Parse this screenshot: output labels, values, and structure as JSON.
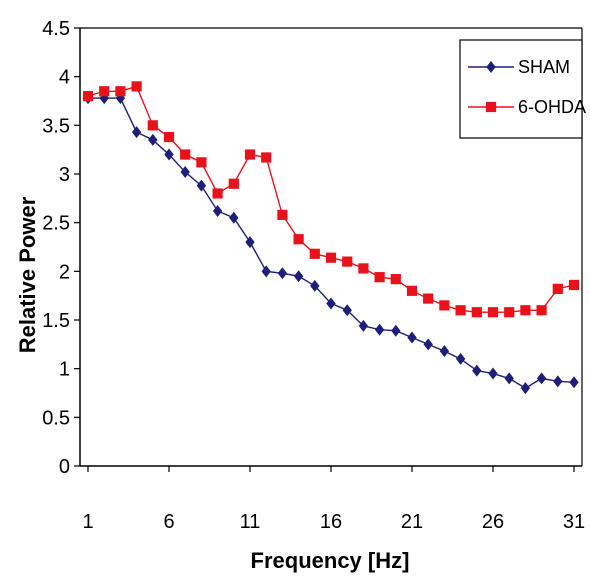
{
  "chart_data": {
    "type": "line",
    "title": "",
    "xlabel": "Frequency [Hz]",
    "ylabel": "Relative Power",
    "xlim": [
      1,
      31
    ],
    "ylim": [
      0,
      4.5
    ],
    "x_ticks": [
      1,
      6,
      11,
      16,
      21,
      26,
      31
    ],
    "y_ticks": [
      0,
      0.5,
      1,
      1.5,
      2,
      2.5,
      3,
      3.5,
      4,
      4.5
    ],
    "grid": false,
    "legend_position": "top-right",
    "x": [
      1,
      2,
      3,
      4,
      5,
      6,
      7,
      8,
      9,
      10,
      11,
      12,
      13,
      14,
      15,
      16,
      17,
      18,
      19,
      20,
      21,
      22,
      23,
      24,
      25,
      26,
      27,
      28,
      29,
      30,
      31
    ],
    "series": [
      {
        "name": "SHAM",
        "color": "#1f1f7a",
        "marker": "diamond",
        "values": [
          3.78,
          3.78,
          3.78,
          3.43,
          3.35,
          3.2,
          3.02,
          2.88,
          2.62,
          2.55,
          2.3,
          2.0,
          1.98,
          1.95,
          1.85,
          1.67,
          1.6,
          1.44,
          1.4,
          1.39,
          1.32,
          1.25,
          1.18,
          1.1,
          0.98,
          0.95,
          0.9,
          0.8,
          0.9,
          0.87,
          0.86
        ]
      },
      {
        "name": "6-OHDA",
        "color": "#e8121b",
        "marker": "square",
        "values": [
          3.8,
          3.85,
          3.85,
          3.9,
          3.5,
          3.38,
          3.2,
          3.12,
          2.8,
          2.9,
          3.2,
          3.17,
          2.58,
          2.33,
          2.18,
          2.14,
          2.1,
          2.03,
          1.94,
          1.92,
          1.8,
          1.72,
          1.65,
          1.6,
          1.58,
          1.58,
          1.58,
          1.6,
          1.6,
          1.82,
          1.86
        ]
      }
    ]
  }
}
